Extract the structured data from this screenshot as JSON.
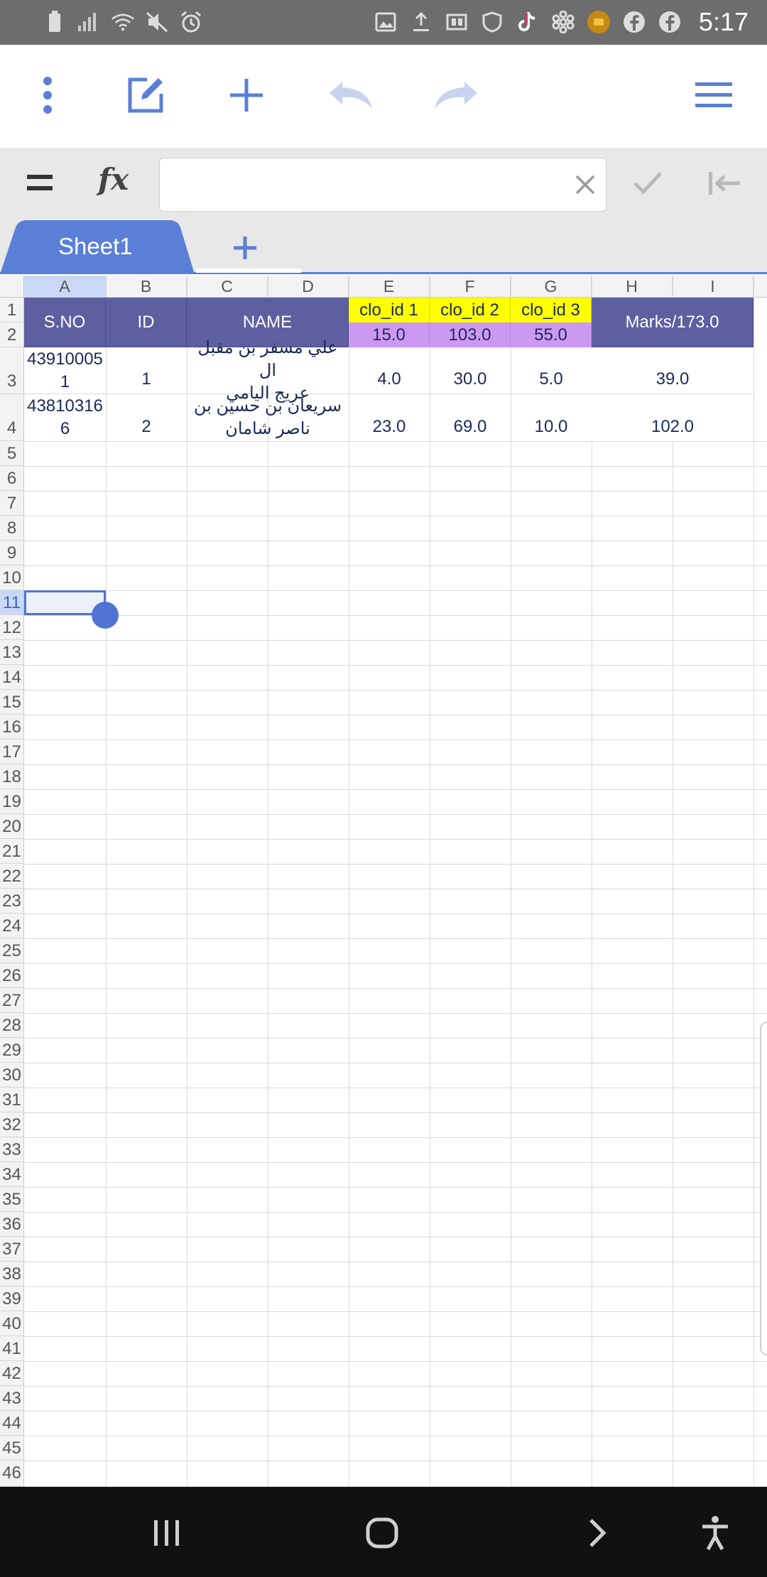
{
  "status_bar": {
    "time": "5:17",
    "left_icons": [
      "battery-icon",
      "signal-icon",
      "wifi-icon",
      "mute-icon",
      "alarm-icon"
    ],
    "right_icons": [
      "gallery-icon",
      "upload-icon",
      "dex-icon",
      "shield-icon",
      "tiktok-icon",
      "snowflake-icon",
      "coin-icon",
      "facebook-icon",
      "facebook-icon"
    ]
  },
  "toolbar": {
    "buttons": [
      "more-vert-icon",
      "edit-icon",
      "add-icon",
      "undo-icon",
      "redo-icon",
      "menu-icon"
    ],
    "accent": "#5a7fd6",
    "disabled_color": "#c8d3ee"
  },
  "formula_bar": {
    "menu_icon": "equals-icon",
    "fx_label": "fx",
    "value": "",
    "placeholder": ""
  },
  "sheets": {
    "tabs": [
      {
        "label": "Sheet1",
        "active": true
      }
    ],
    "add_icon": "add-icon"
  },
  "grid": {
    "columns": [
      "A",
      "B",
      "C",
      "D",
      "E",
      "F",
      "G",
      "H",
      "I"
    ],
    "selected_column": "A",
    "selected_row": "11",
    "rows": [
      "1",
      "2",
      "3",
      "4",
      "5",
      "6",
      "7",
      "8",
      "9",
      "10",
      "11",
      "12",
      "13",
      "14",
      "15",
      "16",
      "17",
      "18",
      "19",
      "20",
      "21",
      "22",
      "23",
      "24",
      "25",
      "26",
      "27",
      "28",
      "29",
      "30",
      "31",
      "32",
      "33",
      "34",
      "35",
      "36",
      "37",
      "38",
      "39",
      "40",
      "41",
      "42",
      "43",
      "44",
      "45",
      "46"
    ],
    "header": {
      "sno": "S.NO",
      "id": "ID",
      "name": "NAME",
      "clo1": "clo_id 1",
      "clo2": "clo_id 2",
      "clo3": "clo_id 3",
      "marks": "Marks/173.0",
      "max1": "15.0",
      "max2": "103.0",
      "max3": "55.0"
    },
    "records": [
      {
        "sno_line1": "43910005",
        "sno_line2": "1",
        "id": "1",
        "name_line1": "علي مسفر بن مقبل ال",
        "name_line2": "عريج اليامي",
        "c1": "4.0",
        "c2": "30.0",
        "c3": "5.0",
        "marks": "39.0"
      },
      {
        "sno_line1": "43810316",
        "sno_line2": "6",
        "id": "2",
        "name_line1": "سريعان بن حسين بن",
        "name_line2": "ناصر شامان",
        "c1": "23.0",
        "c2": "69.0",
        "c3": "10.0",
        "marks": "102.0"
      }
    ],
    "colors": {
      "header_bg": "#5e5fa0",
      "clo_bg": "#ffff00",
      "max_bg": "#cc99f2",
      "text": "#1b2a55"
    }
  },
  "nav_bar": {
    "buttons": [
      "recents-icon",
      "home-icon",
      "back-icon",
      "accessibility-icon"
    ]
  }
}
